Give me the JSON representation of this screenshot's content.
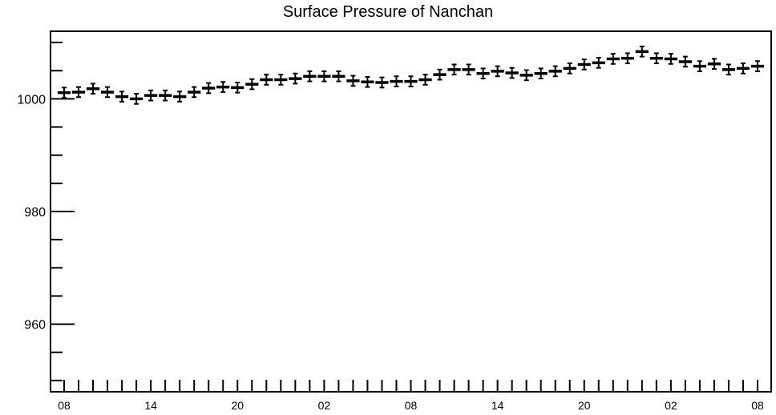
{
  "chart_data": {
    "type": "scatter",
    "title": "Surface Pressure of Nanchan",
    "xlabel": "",
    "ylabel": "",
    "ylim": [
      948,
      1012
    ],
    "yticks": [
      960,
      980,
      1000
    ],
    "ytick_labels": [
      "960",
      "980",
      "1000"
    ],
    "xtick_labels": [
      {
        "index": 0,
        "label": "08"
      },
      {
        "index": 6,
        "label": "14"
      },
      {
        "index": 12,
        "label": "20"
      },
      {
        "index": 18,
        "label": "02"
      },
      {
        "index": 24,
        "label": "08"
      },
      {
        "index": 30,
        "label": "14"
      },
      {
        "index": 36,
        "label": "20"
      },
      {
        "index": 42,
        "label": "02"
      },
      {
        "index": 48,
        "label": "08"
      }
    ],
    "grid": false,
    "error_bar": 0.9,
    "values": [
      1001.1,
      1001.2,
      1001.8,
      1001.2,
      1000.4,
      1000.0,
      1000.6,
      1000.6,
      1000.4,
      1001.2,
      1001.9,
      1002.1,
      1002.0,
      1002.6,
      1003.4,
      1003.4,
      1003.6,
      1004.0,
      1004.0,
      1004.0,
      1003.2,
      1003.0,
      1002.9,
      1003.1,
      1003.1,
      1003.4,
      1004.3,
      1005.2,
      1005.2,
      1004.5,
      1004.9,
      1004.6,
      1004.2,
      1004.5,
      1004.9,
      1005.4,
      1006.1,
      1006.4,
      1007.1,
      1007.2,
      1008.4,
      1007.2,
      1007.1,
      1006.6,
      1005.8,
      1006.2,
      1005.2,
      1005.4,
      1005.8
    ]
  }
}
